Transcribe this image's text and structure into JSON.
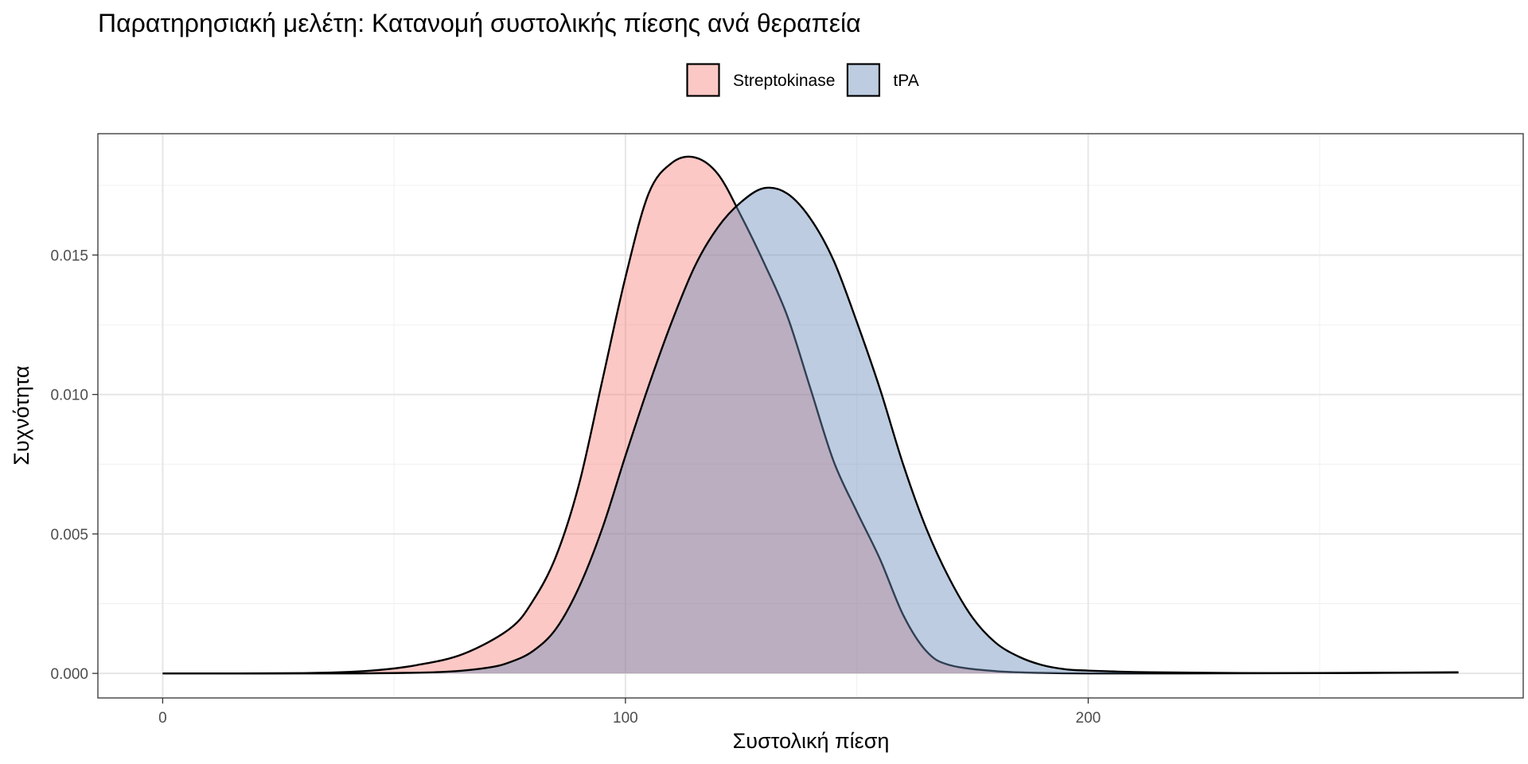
{
  "chart_data": {
    "type": "area",
    "chart_kind": "density",
    "title": "Παρατηρησιακή μελέτη: Κατανομή συστολικής πίεσης ανά θεραπεία",
    "xlabel": "Συστολική πίεση",
    "ylabel": "Συχνότητα",
    "xlim": [
      -14,
      294
    ],
    "ylim": [
      -0.00088,
      0.01935
    ],
    "x_ticks": [
      0,
      100,
      200
    ],
    "x_tick_labels": [
      "0",
      "100",
      "200"
    ],
    "y_ticks": [
      0.0,
      0.005,
      0.01,
      0.015
    ],
    "y_tick_labels": [
      "0.000",
      "0.005",
      "0.010",
      "0.015"
    ],
    "grid": true,
    "legend_position": "top",
    "series": [
      {
        "name": "Streptokinase",
        "fill": "#f8766d",
        "fill_opacity": 0.4,
        "x": [
          0,
          30,
          45,
          55,
          65,
          75,
          80,
          85,
          90,
          95,
          100,
          105,
          110,
          115,
          120,
          125,
          130,
          135,
          140,
          145,
          150,
          155,
          160,
          165,
          170,
          180,
          190,
          200,
          220,
          250,
          280
        ],
        "y": [
          0.0,
          1e-05,
          0.0001,
          0.0003,
          0.0007,
          0.0016,
          0.0026,
          0.0042,
          0.0068,
          0.0105,
          0.0142,
          0.0172,
          0.0183,
          0.0185,
          0.0179,
          0.0164,
          0.0147,
          0.0128,
          0.0102,
          0.0076,
          0.0058,
          0.0041,
          0.0021,
          0.0008,
          0.0003,
          8e-05,
          2e-05,
          0.0,
          0.0,
          1e-05,
          3e-05
        ]
      },
      {
        "name": "tPA",
        "fill": "#6d8fba",
        "fill_opacity": 0.45,
        "x": [
          0,
          40,
          60,
          70,
          75,
          80,
          85,
          90,
          95,
          100,
          105,
          110,
          115,
          120,
          125,
          130,
          135,
          140,
          145,
          150,
          155,
          160,
          165,
          170,
          175,
          180,
          185,
          190,
          195,
          200,
          210,
          220,
          240,
          260,
          280
        ],
        "y": [
          0.0,
          0.0,
          5e-05,
          0.0002,
          0.0004,
          0.0008,
          0.0016,
          0.0031,
          0.0052,
          0.0078,
          0.0103,
          0.0126,
          0.0146,
          0.016,
          0.0169,
          0.0174,
          0.0172,
          0.0163,
          0.0148,
          0.0126,
          0.0102,
          0.0075,
          0.0052,
          0.0034,
          0.002,
          0.0011,
          0.0006,
          0.0003,
          0.00015,
          0.0001,
          5e-05,
          3e-05,
          1e-05,
          2e-05,
          4e-05
        ]
      }
    ]
  }
}
